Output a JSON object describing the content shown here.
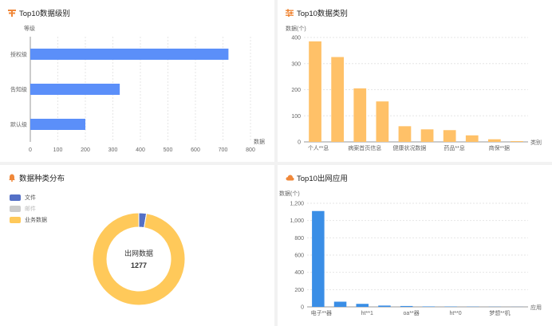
{
  "panels": {
    "level": {
      "title": "Top10数据级别"
    },
    "category": {
      "title": "Top10数据类别"
    },
    "types": {
      "title": "数据种类分布"
    },
    "apps": {
      "title": "Top10出网应用"
    }
  },
  "chart_data": [
    {
      "id": "level",
      "type": "bar",
      "orientation": "horizontal",
      "title": "Top10数据级别",
      "ylabel": "等级",
      "xlabel": "数据",
      "categories": [
        "授权级",
        "告知级",
        "默认级"
      ],
      "values": [
        720,
        325,
        200
      ],
      "xlim": [
        0,
        800
      ],
      "xticks": [
        0,
        100,
        200,
        300,
        400,
        500,
        600,
        700,
        800
      ],
      "color": "#5b8ff9",
      "grid": true
    },
    {
      "id": "category",
      "type": "bar",
      "title": "Top10数据类别",
      "ylabel": "数据(个)",
      "xlabel": "类别",
      "categories": [
        "个人**息",
        "c2",
        "病案首页信息",
        "c4",
        "健康状况数据",
        "c6",
        "药品**息",
        "c8",
        "商保**据",
        "c10"
      ],
      "category_labels": [
        "个人**息",
        "",
        "病案首页信息",
        "",
        "健康状况数据",
        "",
        "药品**息",
        "",
        "商保**据",
        ""
      ],
      "values": [
        385,
        325,
        205,
        155,
        60,
        48,
        45,
        25,
        10,
        3
      ],
      "ylim": [
        0,
        400
      ],
      "yticks": [
        0,
        100,
        200,
        300,
        400
      ],
      "color": "#ffc168",
      "grid": true
    },
    {
      "id": "types",
      "type": "pie",
      "title": "数据种类分布",
      "labels": [
        "文件",
        "邮件",
        "业务数据"
      ],
      "values": [
        34,
        0,
        1243
      ],
      "colors": [
        "#5470c6",
        "#cccccc",
        "#ffc95a"
      ],
      "center_label": "出网数据",
      "total": "1277"
    },
    {
      "id": "apps",
      "type": "bar",
      "title": "Top10出网应用",
      "ylabel": "数据(个)",
      "xlabel": "应用",
      "categories": [
        "a1",
        "a2",
        "a3",
        "a4",
        "a5",
        "a6",
        "a7",
        "a8",
        "a9",
        "a10"
      ],
      "category_labels": [
        "电子**器",
        "",
        "ht**1",
        "",
        "oa**器",
        "",
        "ht**0",
        "",
        "梦想**机",
        ""
      ],
      "values": [
        1110,
        60,
        35,
        15,
        10,
        5,
        4,
        3,
        2,
        1
      ],
      "ylim": [
        0,
        1200
      ],
      "yticks": [
        0,
        200,
        400,
        600,
        800,
        1000,
        1200
      ],
      "ytick_labels": [
        "0",
        "200",
        "400",
        "600",
        "800",
        "1,000",
        "1,200"
      ],
      "color": "#3a8ee6",
      "grid": true
    }
  ]
}
